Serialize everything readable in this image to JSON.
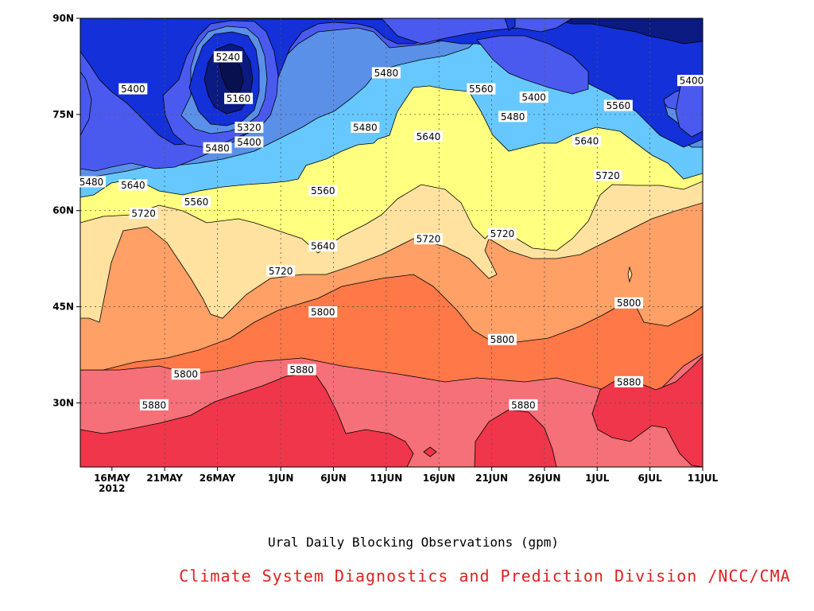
{
  "chart_data": {
    "type": "heatmap",
    "subtype": "contour",
    "title": "Ural Daily Blocking Observations (gpm)",
    "credit": "Climate System Diagnostics and Prediction Division /NCC/CMA",
    "x_ticks": [
      {
        "label": "16MAY",
        "sub": "2012",
        "date": "2012-05-16"
      },
      {
        "label": "21MAY",
        "date": "2012-05-21"
      },
      {
        "label": "26MAY",
        "date": "2012-05-26"
      },
      {
        "label": "1JUN",
        "date": "2012-06-01"
      },
      {
        "label": "6JUN",
        "date": "2012-06-06"
      },
      {
        "label": "11JUN",
        "date": "2012-06-11"
      },
      {
        "label": "16JUN",
        "date": "2012-06-16"
      },
      {
        "label": "21JUN",
        "date": "2012-06-21"
      },
      {
        "label": "26JUN",
        "date": "2012-06-26"
      },
      {
        "label": "1JUL",
        "date": "2012-07-01"
      },
      {
        "label": "6JUL",
        "date": "2012-07-06"
      },
      {
        "label": "11JUL",
        "date": "2012-07-11"
      }
    ],
    "y_ticks": [
      {
        "label": "30N",
        "lat": 30
      },
      {
        "label": "45N",
        "lat": 45
      },
      {
        "label": "60N",
        "lat": 60
      },
      {
        "label": "75N",
        "lat": 75
      },
      {
        "label": "90N",
        "lat": 90
      }
    ],
    "xlim": [
      "2012-05-13",
      "2012-07-11"
    ],
    "ylim": [
      20,
      90
    ],
    "grid": true,
    "levels": [
      5160,
      5240,
      5320,
      5400,
      5480,
      5560,
      5640,
      5720,
      5800,
      5880
    ],
    "fill_colors": [
      "#0a1a80",
      "#1430d8",
      "#4a5aef",
      "#5a90e8",
      "#66c8ff",
      "#ffff80",
      "#ffe2a0",
      "#ffa066",
      "#ff7848",
      "#f57078",
      "#f0364a"
    ],
    "contour_labels": [
      {
        "value": "5240",
        "date": "2012-05-27",
        "lat": 84.0
      },
      {
        "value": "5160",
        "date": "2012-05-28",
        "lat": 77.5
      },
      {
        "value": "5400",
        "date": "2012-05-18",
        "lat": 79.0
      },
      {
        "value": "5320",
        "date": "2012-05-29",
        "lat": 73.0
      },
      {
        "value": "5400",
        "date": "2012-05-29",
        "lat": 70.7
      },
      {
        "value": "5480",
        "date": "2012-05-26",
        "lat": 69.8
      },
      {
        "value": "5480",
        "date": "2012-05-13",
        "lat": 64.5
      },
      {
        "value": "5640",
        "date": "2012-05-18",
        "lat": 64.0
      },
      {
        "value": "5560",
        "date": "2012-05-24",
        "lat": 61.4
      },
      {
        "value": "5720",
        "date": "2012-05-19",
        "lat": 59.6
      },
      {
        "value": "5480",
        "date": "2012-06-09",
        "lat": 73.0
      },
      {
        "value": "5560",
        "date": "2012-06-05",
        "lat": 63.1
      },
      {
        "value": "5640",
        "date": "2012-06-05",
        "lat": 54.5
      },
      {
        "value": "5720",
        "date": "2012-06-01",
        "lat": 50.6
      },
      {
        "value": "5800",
        "date": "2012-06-05",
        "lat": 44.2
      },
      {
        "value": "5800",
        "date": "2012-05-23",
        "lat": 34.5
      },
      {
        "value": "5880",
        "date": "2012-05-20",
        "lat": 29.7
      },
      {
        "value": "5880",
        "date": "2012-06-03",
        "lat": 35.2
      },
      {
        "value": "5480",
        "date": "2012-06-11",
        "lat": 81.5
      },
      {
        "value": "5560",
        "date": "2012-06-20",
        "lat": 79.0
      },
      {
        "value": "5400",
        "date": "2012-06-25",
        "lat": 77.7
      },
      {
        "value": "5480",
        "date": "2012-06-23",
        "lat": 74.7
      },
      {
        "value": "5640",
        "date": "2012-06-15",
        "lat": 71.6
      },
      {
        "value": "5720",
        "date": "2012-06-15",
        "lat": 55.6
      },
      {
        "value": "5720",
        "date": "2012-06-22",
        "lat": 56.4
      },
      {
        "value": "5800",
        "date": "2012-06-22",
        "lat": 39.9
      },
      {
        "value": "5880",
        "date": "2012-06-24",
        "lat": 29.7
      },
      {
        "value": "5560",
        "date": "2012-07-03",
        "lat": 76.4
      },
      {
        "value": "5640",
        "date": "2012-06-30",
        "lat": 70.9
      },
      {
        "value": "5720",
        "date": "2012-07-02",
        "lat": 65.5
      },
      {
        "value": "5800",
        "date": "2012-07-04",
        "lat": 45.6
      },
      {
        "value": "5880",
        "date": "2012-07-04",
        "lat": 33.3
      },
      {
        "value": "5400",
        "date": "2012-07-11",
        "lat": 80.3
      }
    ]
  }
}
